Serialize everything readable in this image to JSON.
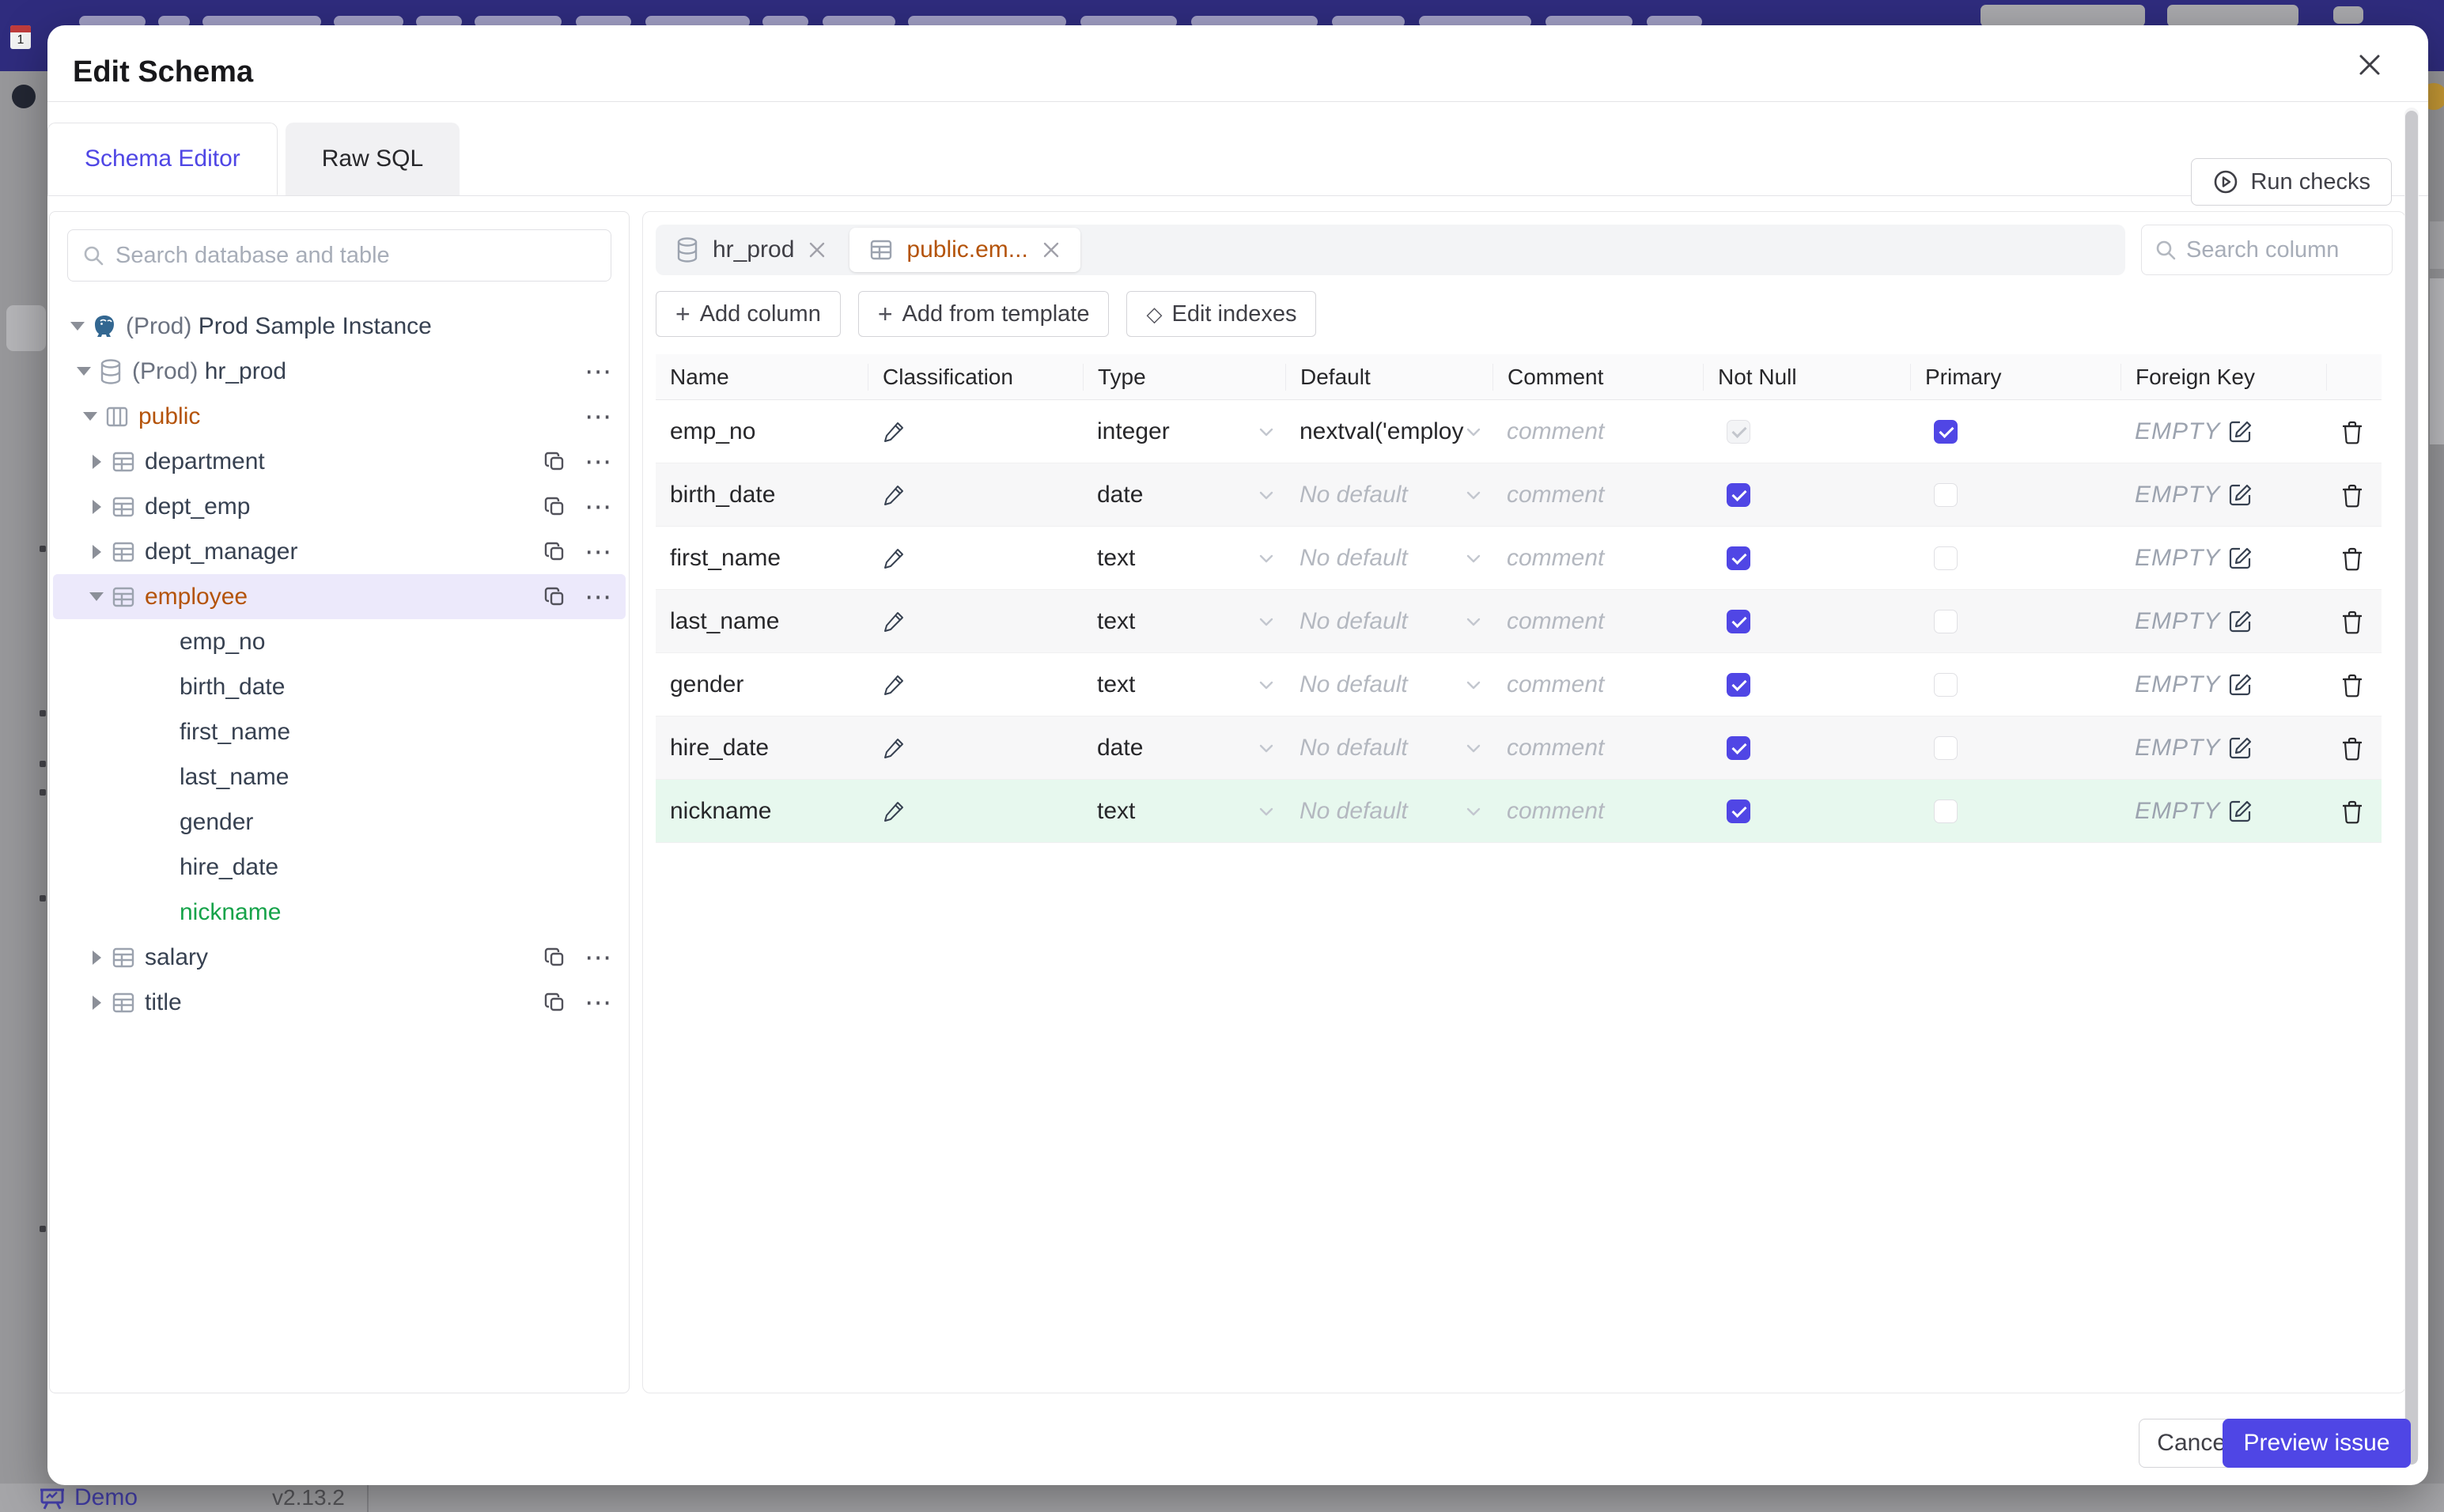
{
  "colors": {
    "accent": "#4f46e5",
    "checkbox_checked": "#5046e5",
    "modified_text": "#b45309",
    "added_text": "#16a34a",
    "added_row_bg": "#e7f8ee",
    "selected_tree_bg": "#ece9fb",
    "banner_bg": "#2f2c7e"
  },
  "footer": {
    "demo_label": "Demo",
    "version": "v2.13.2"
  },
  "modal": {
    "title": "Edit Schema",
    "close_icon": "close-icon",
    "tabs": [
      {
        "label": "Schema Editor",
        "active": true
      },
      {
        "label": "Raw SQL",
        "active": false
      }
    ],
    "run_checks_label": "Run checks",
    "sidebar": {
      "search_placeholder": "Search database and table",
      "tree": [
        {
          "prefix": "(Prod) ",
          "name": "Prod Sample Instance",
          "icon": "postgres",
          "level": 0,
          "caret": "down",
          "copy": false,
          "menu": false,
          "state": "normal"
        },
        {
          "prefix": "(Prod) ",
          "name": "hr_prod",
          "icon": "database",
          "level": 1,
          "caret": "down",
          "copy": false,
          "menu": true,
          "state": "normal"
        },
        {
          "prefix": "",
          "name": "public",
          "icon": "schema",
          "level": 2,
          "caret": "down",
          "copy": false,
          "menu": true,
          "state": "modified"
        },
        {
          "prefix": "",
          "name": "department",
          "icon": "table",
          "level": 3,
          "caret": "right",
          "copy": true,
          "menu": true,
          "state": "normal"
        },
        {
          "prefix": "",
          "name": "dept_emp",
          "icon": "table",
          "level": 3,
          "caret": "right",
          "copy": true,
          "menu": true,
          "state": "normal"
        },
        {
          "prefix": "",
          "name": "dept_manager",
          "icon": "table",
          "level": 3,
          "caret": "right",
          "copy": true,
          "menu": true,
          "state": "normal"
        },
        {
          "prefix": "",
          "name": "employee",
          "icon": "table",
          "level": 3,
          "caret": "down",
          "copy": true,
          "menu": true,
          "state": "modified",
          "selected": true
        },
        {
          "prefix": "",
          "name": "emp_no",
          "icon": "none",
          "level": 4,
          "caret": "none",
          "copy": false,
          "menu": false,
          "state": "normal",
          "column": true
        },
        {
          "prefix": "",
          "name": "birth_date",
          "icon": "none",
          "level": 4,
          "caret": "none",
          "copy": false,
          "menu": false,
          "state": "normal",
          "column": true
        },
        {
          "prefix": "",
          "name": "first_name",
          "icon": "none",
          "level": 4,
          "caret": "none",
          "copy": false,
          "menu": false,
          "state": "normal",
          "column": true
        },
        {
          "prefix": "",
          "name": "last_name",
          "icon": "none",
          "level": 4,
          "caret": "none",
          "copy": false,
          "menu": false,
          "state": "normal",
          "column": true
        },
        {
          "prefix": "",
          "name": "gender",
          "icon": "none",
          "level": 4,
          "caret": "none",
          "copy": false,
          "menu": false,
          "state": "normal",
          "column": true
        },
        {
          "prefix": "",
          "name": "hire_date",
          "icon": "none",
          "level": 4,
          "caret": "none",
          "copy": false,
          "menu": false,
          "state": "normal",
          "column": true
        },
        {
          "prefix": "",
          "name": "nickname",
          "icon": "none",
          "level": 4,
          "caret": "none",
          "copy": false,
          "menu": false,
          "state": "added",
          "column": true
        },
        {
          "prefix": "",
          "name": "salary",
          "icon": "table",
          "level": 3,
          "caret": "right",
          "copy": true,
          "menu": true,
          "state": "normal"
        },
        {
          "prefix": "",
          "name": "title",
          "icon": "table",
          "level": 3,
          "caret": "right",
          "copy": true,
          "menu": true,
          "state": "normal"
        }
      ]
    },
    "editor": {
      "chips": [
        {
          "icon": "database",
          "label": "hr_prod",
          "active": false
        },
        {
          "icon": "table",
          "label": "public.em...",
          "active": true
        }
      ],
      "column_search_placeholder": "Search column",
      "actions": [
        {
          "icon": "plus",
          "label": "Add column"
        },
        {
          "icon": "plus",
          "label": "Add from template"
        },
        {
          "icon": "diamond",
          "label": "Edit indexes"
        }
      ],
      "table": {
        "headers": [
          "Name",
          "Classification",
          "Type",
          "Default",
          "Comment",
          "Not Null",
          "Primary",
          "Foreign Key",
          ""
        ],
        "comment_placeholder": "comment",
        "fk_empty_value": "EMPTY",
        "rows": [
          {
            "name": "emp_no",
            "type": "integer",
            "default": "nextval('employ",
            "has_default": true,
            "not_null": "disabled-checked",
            "primary": "checked",
            "state": "normal"
          },
          {
            "name": "birth_date",
            "type": "date",
            "default": "No default",
            "has_default": false,
            "not_null": "checked",
            "primary": "unchecked",
            "state": "normal"
          },
          {
            "name": "first_name",
            "type": "text",
            "default": "No default",
            "has_default": false,
            "not_null": "checked",
            "primary": "unchecked",
            "state": "normal"
          },
          {
            "name": "last_name",
            "type": "text",
            "default": "No default",
            "has_default": false,
            "not_null": "checked",
            "primary": "unchecked",
            "state": "normal"
          },
          {
            "name": "gender",
            "type": "text",
            "default": "No default",
            "has_default": false,
            "not_null": "checked",
            "primary": "unchecked",
            "state": "normal"
          },
          {
            "name": "hire_date",
            "type": "date",
            "default": "No default",
            "has_default": false,
            "not_null": "checked",
            "primary": "unchecked",
            "state": "normal"
          },
          {
            "name": "nickname",
            "type": "text",
            "default": "No default",
            "has_default": false,
            "not_null": "checked",
            "primary": "unchecked",
            "state": "added"
          }
        ]
      }
    },
    "footer": {
      "cancel_label": "Cancel",
      "submit_label": "Preview issue"
    }
  }
}
